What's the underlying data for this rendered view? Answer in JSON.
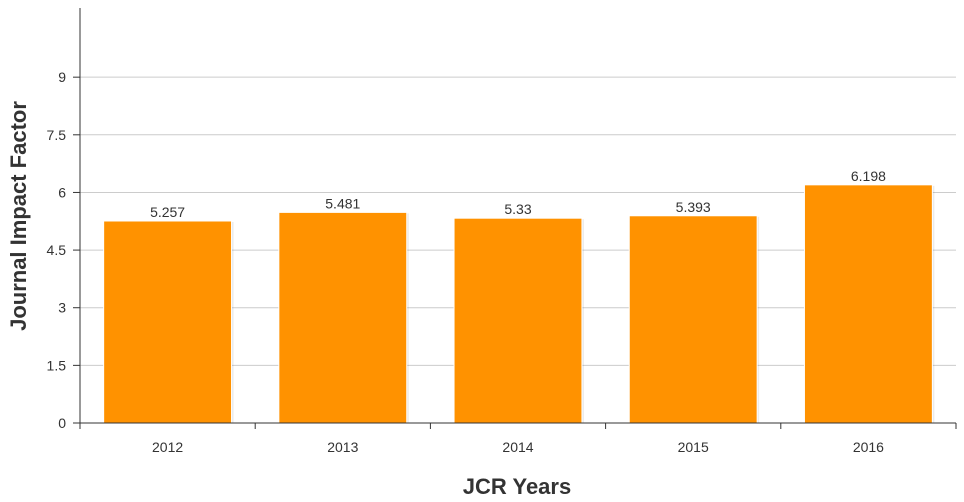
{
  "chart_data": {
    "type": "bar",
    "title": "",
    "xlabel": "JCR Years",
    "ylabel": "Journal Impact Factor",
    "categories": [
      "2012",
      "2013",
      "2014",
      "2015",
      "2016"
    ],
    "values": [
      5.257,
      5.481,
      5.33,
      5.393,
      6.198
    ],
    "value_labels": [
      "5.257",
      "5.481",
      "5.33",
      "5.393",
      "6.198"
    ],
    "yticks": [
      0,
      1.5,
      3,
      4.5,
      6,
      7.5,
      9
    ],
    "ytick_labels": [
      "0",
      "1.5",
      "3",
      "4.5",
      "6",
      "7.5",
      "9"
    ],
    "ylim": [
      0,
      10.8
    ],
    "grid": true,
    "legend": "none",
    "bar_color": "#ff9200",
    "grid_color": "#cccccc",
    "axis_color": "#333333"
  }
}
